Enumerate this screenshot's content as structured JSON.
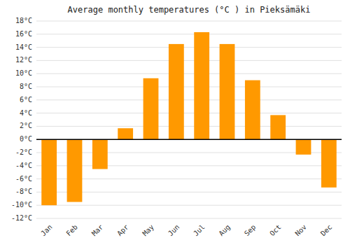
{
  "chart_data": {
    "type": "bar",
    "title": "Average monthly temperatures (°C ) in Pieksämäki",
    "categories": [
      "Jan",
      "Feb",
      "Mar",
      "Apr",
      "May",
      "Jun",
      "Jul",
      "Aug",
      "Sep",
      "Oct",
      "Nov",
      "Dec"
    ],
    "values": [
      -10,
      -9.5,
      -4.5,
      1.7,
      9.3,
      14.5,
      16.3,
      14.5,
      9.0,
      3.7,
      -2.3,
      -7.3
    ],
    "color": "#FF9900",
    "ylim": [
      -12,
      18
    ],
    "yticks": [
      {
        "value": -12,
        "label": "-12°C"
      },
      {
        "value": -10,
        "label": "-10°C"
      },
      {
        "value": -8,
        "label": "-8°C"
      },
      {
        "value": -6,
        "label": "-6°C"
      },
      {
        "value": -4,
        "label": "-4°C"
      },
      {
        "value": -2,
        "label": "-2°C"
      },
      {
        "value": 0,
        "label": "0°C"
      },
      {
        "value": 2,
        "label": "2°C"
      },
      {
        "value": 4,
        "label": "4°C"
      },
      {
        "value": 6,
        "label": "6°C"
      },
      {
        "value": 8,
        "label": "8°C"
      },
      {
        "value": 10,
        "label": "10°C"
      },
      {
        "value": 12,
        "label": "12°C"
      },
      {
        "value": 14,
        "label": "14°C"
      },
      {
        "value": 16,
        "label": "16°C"
      },
      {
        "value": 18,
        "label": "18°C"
      }
    ],
    "grid": true
  }
}
